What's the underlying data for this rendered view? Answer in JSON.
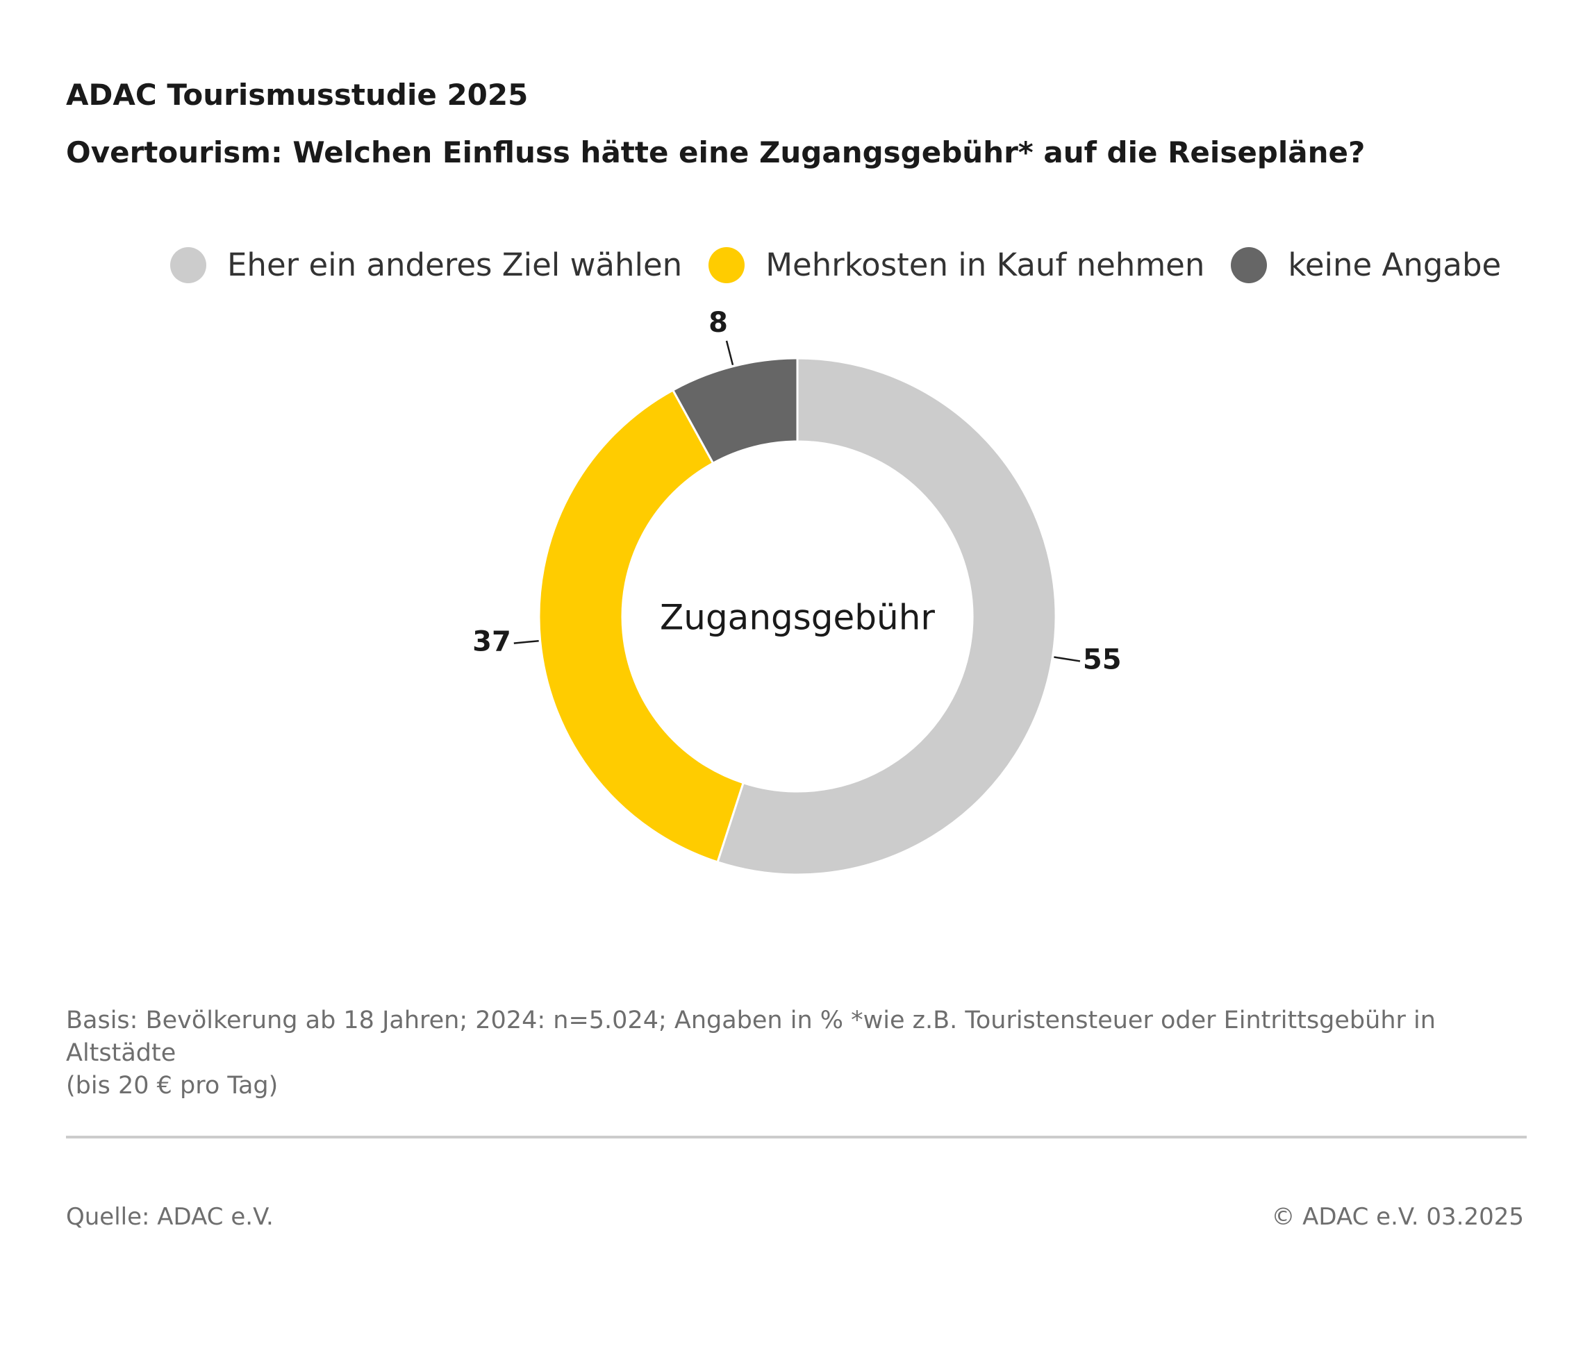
{
  "header": {
    "title": "ADAC Tourismusstudie 2025",
    "subtitle": "Overtourism: Welchen Einfluss hätte eine Zugangsgebühr* auf die Reisepläne?"
  },
  "chart_data": {
    "type": "pie",
    "donut": true,
    "center_label": "Zugangsgebühr",
    "categories": [
      "Eher ein anderes Ziel wählen",
      "Mehrkosten in Kauf nehmen",
      "keine Angabe"
    ],
    "values": [
      55,
      37,
      8
    ],
    "colors": [
      "#cccccc",
      "#ffcc00",
      "#666666"
    ],
    "legend_position": "top",
    "start": "12 o'clock, clockwise"
  },
  "footer": {
    "note_line1": "Basis: Bevölkerung ab 18 Jahren; 2024: n=5.024; Angaben in % *wie z.B. Touristensteuer oder Eintrittsgebühr in Altstädte",
    "note_line2": "(bis 20 € pro Tag)",
    "source": "Quelle: ADAC e.V.",
    "copyright": "© ADAC e.V. 03.2025"
  }
}
